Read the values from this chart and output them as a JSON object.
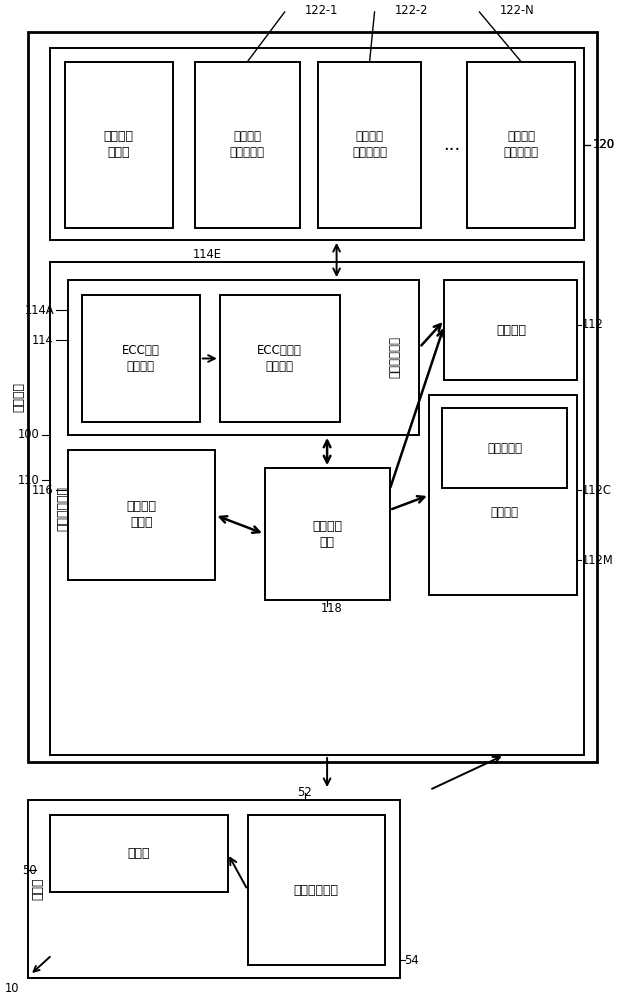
{
  "bg_color": "#ffffff",
  "line_color": "#000000",
  "labels": {
    "nvm_main": "非挥发性\n存储器",
    "nvm1": "非挥发性\n存储器组件",
    "nvm2": "非挥发性\n存储器组件",
    "nvmN": "非挥发性\n存储器组件",
    "ecc_array": "ECC组块\n排列电路",
    "ecc_rand": "ECC及随机\n化器电路",
    "ctrl_logic": "控制逻辑电路",
    "micro_proc": "微处理器",
    "ram": "随机存取\n存储器",
    "transfer_if": "传输接口\n电路",
    "rom": "只读存储器",
    "prog_code": "程序代码",
    "mem_ctrl": "存储器控制器",
    "mem_dev": "记忆装置",
    "processor": "处理器",
    "power_supply": "电源供应电路",
    "host_label": "主装置"
  }
}
